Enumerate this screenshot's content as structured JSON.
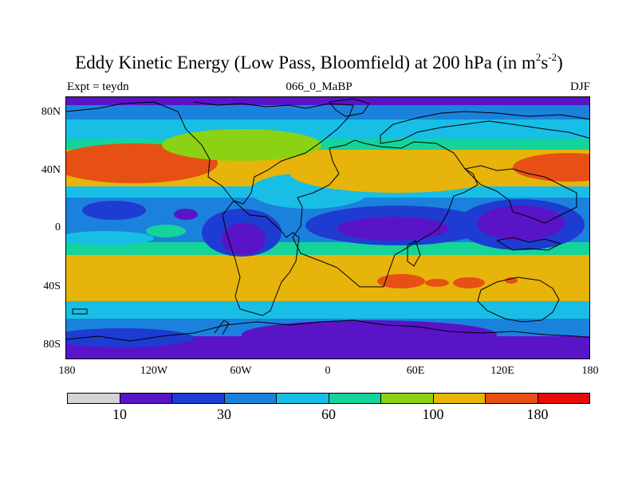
{
  "title": {
    "main": "Eddy Kinetic Energy (Low Pass, Bloomfield) at 200 hPa (in m",
    "sup1": "2",
    "s": "s",
    "sup2": "-2",
    "close": ")"
  },
  "subtitle_left": "Expt = teydn",
  "subtitle_center": "066_0_MaBP",
  "subtitle_right": "DJF",
  "y_ticks": [
    "80N",
    "40N",
    "0",
    "40S",
    "80S"
  ],
  "x_ticks": [
    "180",
    "120W",
    "60W",
    "0",
    "60E",
    "120E",
    "180"
  ],
  "colorbar": {
    "colors": [
      "#d3d3d3",
      "#5a14c8",
      "#1e3cd2",
      "#1a82dc",
      "#18bee6",
      "#14d49a",
      "#8cd214",
      "#e6b40a",
      "#e65014",
      "#e60a0a"
    ],
    "labels": [
      "10",
      "30",
      "60",
      "100",
      "180"
    ]
  },
  "palette": {
    "purple": "#5a14c8",
    "blue": "#1e3cd2",
    "mid_blue": "#1a82dc",
    "cyan": "#18bee6",
    "green": "#14d49a",
    "yellow_green": "#8cd214",
    "gold": "#e6b40a",
    "orange": "#e65014"
  }
}
